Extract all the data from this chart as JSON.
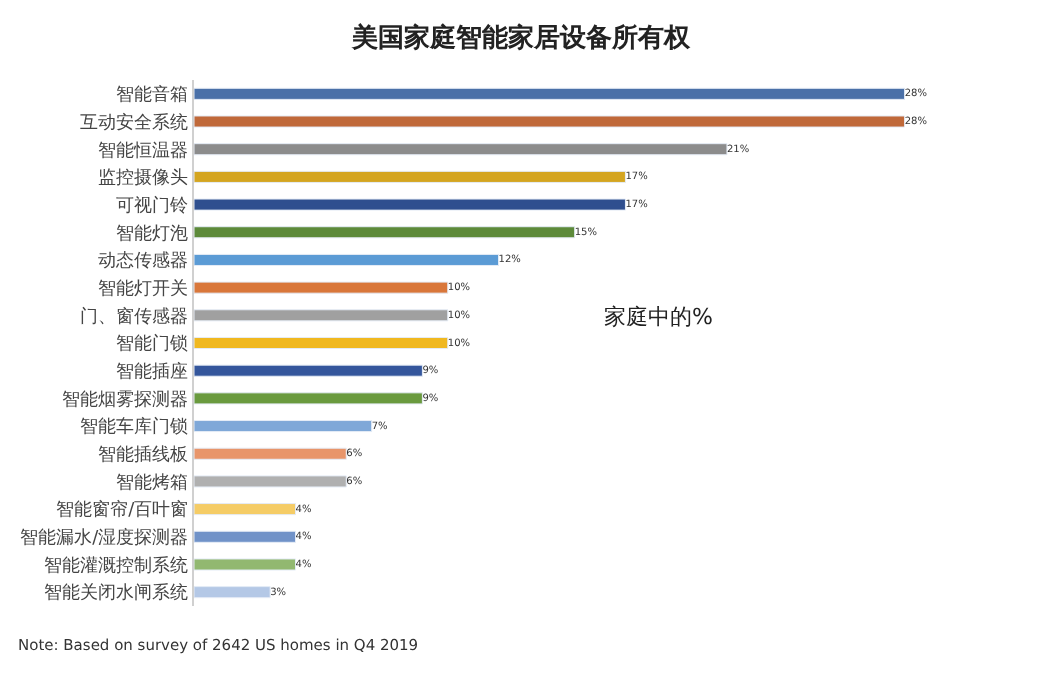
{
  "chart_data": {
    "type": "bar",
    "orientation": "horizontal",
    "title": "美国家庭智能家居设备所有权",
    "categories": [
      "智能音箱",
      "互动安全系统",
      "智能恒温器",
      "监控摄像头",
      "可视门铃",
      "智能灯泡",
      "动态传感器",
      "智能灯开关",
      "门、窗传感器",
      "智能门锁",
      "智能插座",
      "智能烟雾探测器",
      "智能车库门锁",
      "智能插线板",
      "智能烤箱",
      "智能窗帘/百叶窗",
      "智能漏水/湿度探测器",
      "智能灌溉控制系统",
      "智能关闭水闸系统"
    ],
    "values": [
      28,
      28,
      21,
      17,
      17,
      15,
      12,
      10,
      10,
      10,
      9,
      9,
      7,
      6,
      6,
      4,
      4,
      4,
      3
    ],
    "value_labels": [
      "28%",
      "28%",
      "21%",
      "17%",
      "17%",
      "15%",
      "12%",
      "10%",
      "10%",
      "10%",
      "9%",
      "9%",
      "7%",
      "6%",
      "6%",
      "4%",
      "4%",
      "4%",
      "3%"
    ],
    "colors": [
      "#4a70a8",
      "#c0693a",
      "#8c8c8c",
      "#d4a520",
      "#2f4f8f",
      "#5d8a3a",
      "#5b9bd5",
      "#d9773a",
      "#a0a0a0",
      "#f0b820",
      "#34569c",
      "#6a9a3e",
      "#7fa8d8",
      "#e8956a",
      "#b0b0b0",
      "#f5cc66",
      "#7092c8",
      "#92b870",
      "#b4c8e6"
    ],
    "tick_labels": "y",
    "legend": false,
    "annotations": [
      "家庭中的%",
      "Note: Based on survey of 2642 US homes in Q4 2019"
    ]
  }
}
